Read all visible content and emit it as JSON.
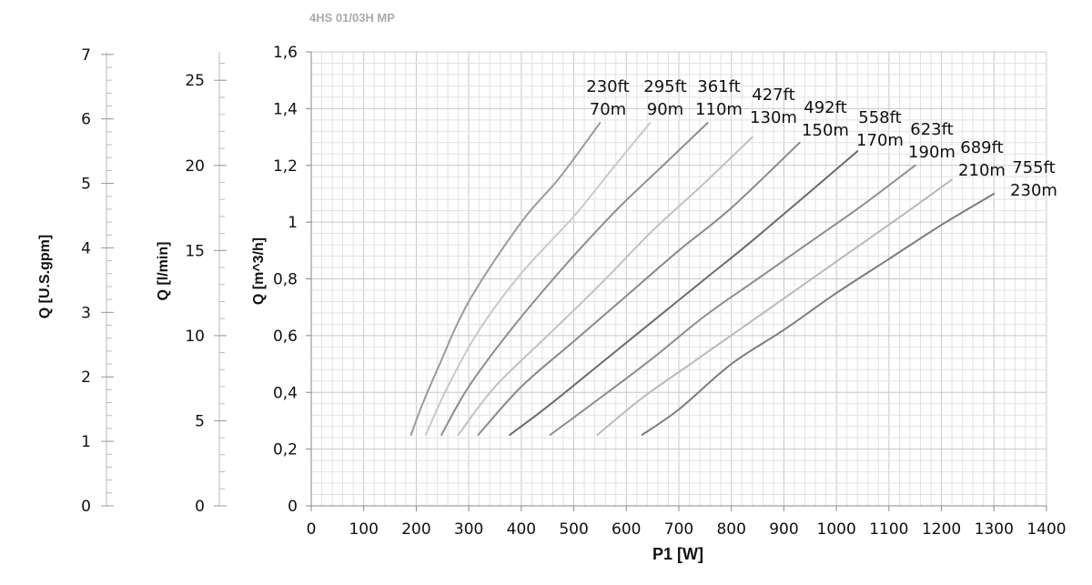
{
  "chart_data": {
    "type": "line",
    "title": "4HS 01/03H MP",
    "xlabel": "P1 [W]",
    "ylabel": "Q [m^3/h]",
    "xlim": [
      0,
      1400
    ],
    "ylim": [
      0,
      1.6
    ],
    "grid": true,
    "x_ticks": [
      "0",
      "100",
      "200",
      "300",
      "400",
      "500",
      "600",
      "700",
      "800",
      "900",
      "1000",
      "1100",
      "1200",
      "1300",
      "1400"
    ],
    "y_ticks": [
      "0",
      "0,2",
      "0,4",
      "0,6",
      "0,8",
      "1",
      "1,2",
      "1,4",
      "1,6"
    ],
    "secondary_axes": [
      {
        "label": "Q [l/min]",
        "ticks": [
          "0",
          "5",
          "10",
          "15",
          "20",
          "25"
        ],
        "max": 26.67
      },
      {
        "label": "Q [U.S.gpm]",
        "ticks": [
          "0",
          "1",
          "2",
          "3",
          "4",
          "5",
          "6",
          "7"
        ],
        "max": 7.04
      }
    ],
    "series": [
      {
        "name": "230ft 70m",
        "color": "#9b9b9b",
        "x": [
          190,
          210,
          240,
          300,
          400,
          470,
          550
        ],
        "y": [
          0.25,
          0.35,
          0.48,
          0.72,
          1.0,
          1.15,
          1.35
        ]
      },
      {
        "name": "295ft 90m",
        "color": "#c9c9c9",
        "x": [
          218,
          260,
          320,
          400,
          500,
          570,
          645
        ],
        "y": [
          0.25,
          0.42,
          0.62,
          0.82,
          1.02,
          1.18,
          1.35
        ]
      },
      {
        "name": "361ft 110m",
        "color": "#8e8e8e",
        "x": [
          248,
          300,
          380,
          480,
          580,
          670,
          755
        ],
        "y": [
          0.25,
          0.42,
          0.62,
          0.84,
          1.04,
          1.2,
          1.35
        ]
      },
      {
        "name": "427ft 130m",
        "color": "#c1c1c1",
        "x": [
          280,
          350,
          450,
          550,
          650,
          750,
          840
        ],
        "y": [
          0.25,
          0.42,
          0.6,
          0.78,
          0.97,
          1.14,
          1.3
        ]
      },
      {
        "name": "492ft 150m",
        "color": "#8a8a8a",
        "x": [
          318,
          400,
          500,
          600,
          700,
          800,
          930
        ],
        "y": [
          0.25,
          0.42,
          0.58,
          0.74,
          0.9,
          1.05,
          1.28
        ]
      },
      {
        "name": "558ft 170m",
        "color": "#6c6c6c",
        "x": [
          378,
          450,
          550,
          650,
          750,
          850,
          1040
        ],
        "y": [
          0.25,
          0.35,
          0.5,
          0.65,
          0.8,
          0.95,
          1.25
        ]
      },
      {
        "name": "623ft 190m",
        "color": "#8e8e8e",
        "x": [
          455,
          550,
          650,
          750,
          850,
          950,
          1050,
          1150
        ],
        "y": [
          0.25,
          0.38,
          0.52,
          0.67,
          0.8,
          0.93,
          1.06,
          1.2
        ]
      },
      {
        "name": "689ft 210m",
        "color": "#b9b9b9",
        "x": [
          545,
          630,
          730,
          830,
          930,
          1030,
          1130,
          1220
        ],
        "y": [
          0.25,
          0.38,
          0.51,
          0.64,
          0.77,
          0.9,
          1.03,
          1.15
        ]
      },
      {
        "name": "755ft 230m",
        "color": "#7d7d7d",
        "x": [
          630,
          700,
          800,
          900,
          1000,
          1100,
          1200,
          1300
        ],
        "y": [
          0.25,
          0.34,
          0.5,
          0.62,
          0.75,
          0.87,
          0.99,
          1.1
        ]
      }
    ],
    "curve_labels": [
      {
        "top": "230ft",
        "bottom": "70m"
      },
      {
        "top": "295ft",
        "bottom": "90m"
      },
      {
        "top": "361ft",
        "bottom": "110m"
      },
      {
        "top": "427ft",
        "bottom": "130m"
      },
      {
        "top": "492ft",
        "bottom": "150m"
      },
      {
        "top": "558ft",
        "bottom": "170m"
      },
      {
        "top": "623ft",
        "bottom": "190m"
      },
      {
        "top": "689ft",
        "bottom": "210m"
      },
      {
        "top": "755ft",
        "bottom": "230m"
      }
    ],
    "colors": {
      "title": "#aaaaaa",
      "grid_minor": "#e2e2e2",
      "grid_major": "#c8c8c8",
      "axis": "#888888",
      "text": "#111111"
    }
  }
}
